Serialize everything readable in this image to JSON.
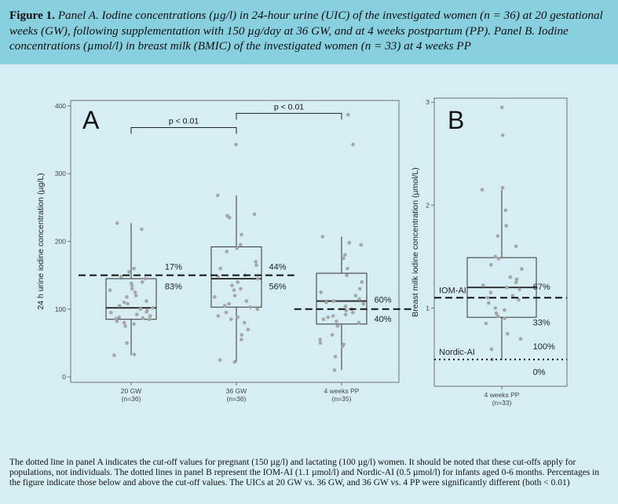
{
  "caption": {
    "label": "Figure 1.",
    "text": "Panel A. Iodine concentrations (µg/l) in 24-hour urine (UIC) of the investigated women (n = 36) at 20 gestational weeks (GW), following supplementation with 150 µg/day at 36 GW, and at 4 weeks postpartum (PP). Panel B. Iodine concentrations (µmol/l) in breast milk (BMIC) of the investigated women (n = 33) at 4 weeks PP"
  },
  "footer_note": "The dotted line in panel A indicates the cut-off values for pregnant (150 µg/l) and lactating (100 µg/l) women. It should be noted that these cut-offs apply for populations, not individuals. The dotted lines in panel B represent the IOM-AI (1.1 µmol/l) and Nordic-AI (0.5 µmol/l) for infants aged 0-6 months. Percentages in the figure indicate those below and above the cut-off values. The UICs at 20 GW vs. 36 GW, and 36 GW vs. 4 PP were significantly different (both < 0.01)",
  "colors": {
    "header_bg": "#88cfe0",
    "figure_bg": "#d6edf4",
    "point": "#a6a6a6",
    "box": "#333333"
  },
  "chart_data": [
    {
      "type": "box",
      "panel_label": "A",
      "ylabel": "24 h urine iodine concentration (µg/L)",
      "ylim": [
        -8,
        408
      ],
      "yticks": [
        0,
        100,
        200,
        300,
        400
      ],
      "grid": false,
      "categories": [
        {
          "label": "20 GW",
          "n": "(n=36)",
          "box": {
            "q1": 85,
            "median": 102,
            "q3": 145,
            "whisker_low": 32,
            "whisker_high": 227
          },
          "points": [
            227,
            218,
            160,
            155,
            148,
            145,
            140,
            138,
            135,
            130,
            128,
            125,
            120,
            118,
            112,
            110,
            108,
            105,
            102,
            100,
            98,
            96,
            95,
            92,
            90,
            88,
            87,
            86,
            85,
            82,
            80,
            78,
            75,
            50,
            33,
            32
          ]
        },
        {
          "label": "36 GW",
          "n": "(n=36)",
          "box": {
            "q1": 103,
            "median": 145,
            "q3": 192,
            "whisker_low": 22,
            "whisker_high": 268
          },
          "points": [
            343,
            268,
            240,
            238,
            235,
            210,
            195,
            190,
            185,
            170,
            165,
            160,
            150,
            148,
            145,
            140,
            135,
            130,
            128,
            120,
            118,
            112,
            108,
            105,
            103,
            100,
            95,
            90,
            88,
            85,
            80,
            70,
            62,
            55,
            25,
            22
          ]
        },
        {
          "label": "4 weeks PP",
          "n": "(n=35)",
          "box": {
            "q1": 78,
            "median": 112,
            "q3": 153,
            "whisker_low": 10,
            "whisker_high": 207
          },
          "points": [
            387,
            343,
            207,
            198,
            195,
            180,
            175,
            160,
            150,
            140,
            130,
            125,
            120,
            115,
            112,
            110,
            108,
            104,
            100,
            98,
            95,
            92,
            90,
            88,
            85,
            82,
            80,
            75,
            62,
            55,
            50,
            48,
            45,
            30,
            10
          ]
        }
      ],
      "cutoffs": [
        {
          "value": 150,
          "x_from": 0.5,
          "x_to": 2.55,
          "style": "dashed"
        },
        {
          "value": 100,
          "x_from": 2.55,
          "x_to": 3.7,
          "style": "dashed"
        }
      ],
      "significance": [
        {
          "from": 1,
          "to": 2,
          "label": "p < 0.01",
          "height": 368
        },
        {
          "from": 2,
          "to": 3,
          "label": "p < 0.01",
          "height": 389
        }
      ],
      "annotations": [
        {
          "text": "17%",
          "x": 1.32,
          "y": 163
        },
        {
          "text": "83%",
          "x": 1.32,
          "y": 134
        },
        {
          "text": "44%",
          "x": 2.31,
          "y": 163
        },
        {
          "text": "56%",
          "x": 2.31,
          "y": 134
        },
        {
          "text": "60%",
          "x": 3.31,
          "y": 114
        },
        {
          "text": "40%",
          "x": 3.31,
          "y": 86
        }
      ]
    },
    {
      "type": "box",
      "panel_label": "B",
      "ylabel": "Breast milk iodine concentration (µmol/L)",
      "ylim": [
        0.24,
        3.04
      ],
      "yticks": [
        1,
        2,
        3
      ],
      "grid": false,
      "categories": [
        {
          "label": "4 weeks PP",
          "n": "(n=33)",
          "box": {
            "q1": 0.91,
            "median": 1.2,
            "q3": 1.49,
            "whisker_low": 0.5,
            "whisker_high": 2.15
          },
          "points": [
            2.95,
            2.68,
            2.17,
            2.15,
            1.95,
            1.8,
            1.7,
            1.6,
            1.5,
            1.48,
            1.42,
            1.38,
            1.3,
            1.28,
            1.25,
            1.22,
            1.2,
            1.18,
            1.15,
            1.12,
            1.1,
            1.08,
            1.05,
            1.0,
            0.98,
            0.95,
            0.92,
            0.9,
            0.85,
            0.75,
            0.7,
            0.6,
            0.5
          ]
        }
      ],
      "cutoffs": [
        {
          "value": 1.1,
          "label": "IOM-AI",
          "style": "dashed"
        },
        {
          "value": 0.5,
          "label": "Nordic-AI",
          "style": "dotted"
        }
      ],
      "annotations": [
        {
          "text": "67%",
          "x": 1.33,
          "y": 1.21
        },
        {
          "text": "33%",
          "x": 1.33,
          "y": 0.86
        },
        {
          "text": "100%",
          "x": 1.33,
          "y": 0.63
        },
        {
          "text": "0%",
          "x": 1.33,
          "y": 0.38
        }
      ]
    }
  ]
}
